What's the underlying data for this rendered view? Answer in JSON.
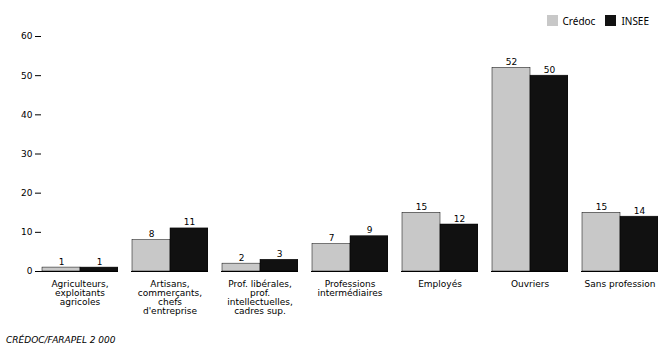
{
  "chart_data": {
    "type": "bar",
    "categories": [
      "Agriculteurs,\nexploitants\nagricoles",
      "Artisans,\ncommerçants,\nchefs\nd'entreprise",
      "Prof. libérales,\nprof.\nintellectuelles,\ncadres sup.",
      "Professions\nintermédiaires",
      "Employés",
      "Ouvriers",
      "Sans profession"
    ],
    "series": [
      {
        "name": "Crédoc",
        "color": "#c8c8c8",
        "values": [
          1,
          8,
          2,
          7,
          15,
          52,
          15
        ]
      },
      {
        "name": "INSEE",
        "color": "#111111",
        "values": [
          1,
          11,
          3,
          9,
          12,
          50,
          14
        ]
      }
    ],
    "ylim": [
      0,
      60
    ],
    "yticks": [
      0,
      10,
      20,
      30,
      40,
      50,
      60
    ],
    "grid": false,
    "legend": "upper right",
    "data_labels": true,
    "annotations": [
      "CRÉDOC/FARAPEL 2 000"
    ]
  }
}
